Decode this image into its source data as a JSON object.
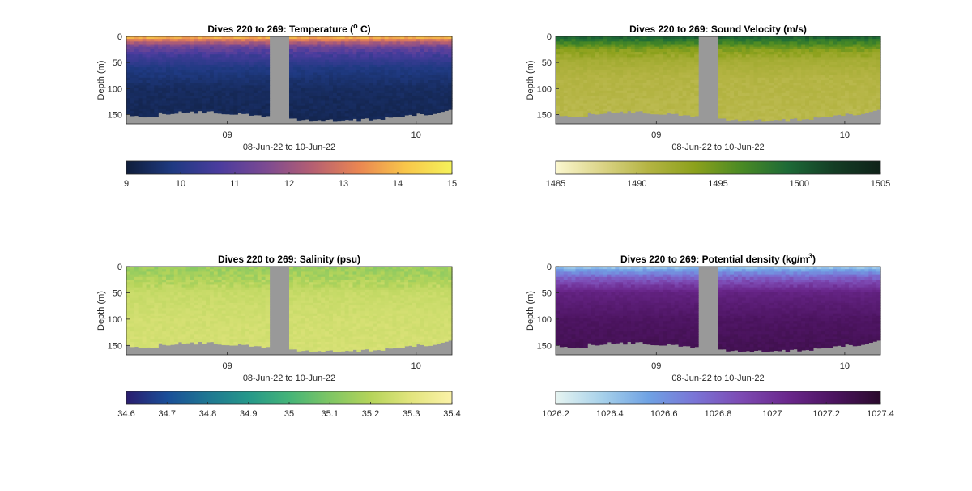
{
  "figure": {
    "date_range_label": "08-Jun-22 to 10-Jun-22",
    "depth_label": "Depth (m)",
    "depth_ticks": [
      0,
      50,
      100,
      150
    ],
    "depth_lim": [
      0,
      168
    ],
    "time_ticks": [
      "09",
      "10"
    ],
    "land_color": "#999999"
  },
  "chart_data": [
    {
      "type": "heatmap",
      "title_text": "Dives 220 to 269: Temperature (",
      "title_sup": "o",
      "title_tail": " C)",
      "ylabel": "Depth (m)",
      "xlabel": "08-Jun-22 to 10-Jun-22",
      "x_ticks": [
        "09",
        "10"
      ],
      "y_ticks": [
        0,
        50,
        100,
        150
      ],
      "ylim": [
        0,
        168
      ],
      "colorbar": {
        "ticks": [
          "9",
          "10",
          "11",
          "12",
          "13",
          "14",
          "15"
        ],
        "range": [
          9,
          15
        ],
        "colors": [
          "#0f1d3a",
          "#1f3a82",
          "#4b3c9e",
          "#7c4a92",
          "#b55f72",
          "#ea8652",
          "#f8c64a",
          "#f5f25a"
        ]
      },
      "profile": [
        [
          0,
          14.2
        ],
        [
          10,
          12.5
        ],
        [
          20,
          11.3
        ],
        [
          35,
          10.6
        ],
        [
          60,
          9.9
        ],
        [
          100,
          9.45
        ],
        [
          168,
          9.3
        ]
      ]
    },
    {
      "type": "heatmap",
      "title_text": "Dives 220 to 269: Sound Velocity (m/s)",
      "title_sup": "",
      "title_tail": "",
      "ylabel": "Depth (m)",
      "xlabel": "08-Jun-22 to 10-Jun-22",
      "x_ticks": [
        "09",
        "10"
      ],
      "y_ticks": [
        0,
        50,
        100,
        150
      ],
      "ylim": [
        0,
        168
      ],
      "colorbar": {
        "ticks": [
          "1485",
          "1490",
          "1495",
          "1500",
          "1505"
        ],
        "range": [
          1485,
          1505
        ],
        "colors": [
          "#fbf7cf",
          "#dbd487",
          "#b4b443",
          "#8ca11c",
          "#4a8a24",
          "#1d6a37",
          "#143d25",
          "#0f2219"
        ]
      },
      "profile": [
        [
          0,
          1500
        ],
        [
          10,
          1497.5
        ],
        [
          25,
          1494
        ],
        [
          45,
          1491.8
        ],
        [
          80,
          1490.7
        ],
        [
          168,
          1490.3
        ]
      ]
    },
    {
      "type": "heatmap",
      "title_text": "Dives 220 to 269: Salinity (psu)",
      "title_sup": "",
      "title_tail": "",
      "ylabel": "Depth (m)",
      "xlabel": "08-Jun-22 to 10-Jun-22",
      "x_ticks": [
        "09",
        "10"
      ],
      "y_ticks": [
        0,
        50,
        100,
        150
      ],
      "ylim": [
        0,
        168
      ],
      "colorbar": {
        "ticks": [
          "34.6",
          "34.7",
          "34.8",
          "34.9",
          "35",
          "35.1",
          "35.2",
          "35.3",
          "35.4"
        ],
        "range": [
          34.6,
          35.4
        ],
        "colors": [
          "#2a1d6e",
          "#1a4e98",
          "#1f7792",
          "#25988a",
          "#44b478",
          "#7ec664",
          "#b5d45a",
          "#e3e57e",
          "#fbf2a8"
        ]
      },
      "profile": [
        [
          0,
          35.15
        ],
        [
          20,
          35.18
        ],
        [
          50,
          35.24
        ],
        [
          100,
          35.26
        ],
        [
          168,
          35.27
        ]
      ]
    },
    {
      "type": "heatmap",
      "title_text": "Dives 220 to 269: Potential density (kg/m",
      "title_sup": "3",
      "title_tail": ")",
      "ylabel": "Depth (m)",
      "xlabel": "08-Jun-22 to 10-Jun-22",
      "x_ticks": [
        "09",
        "10"
      ],
      "y_ticks": [
        0,
        50,
        100,
        150
      ],
      "ylim": [
        0,
        168
      ],
      "colorbar": {
        "ticks": [
          "1026.2",
          "1026.4",
          "1026.6",
          "1026.8",
          "1027",
          "1027.2",
          "1027.4"
        ],
        "range": [
          1026.2,
          1027.4
        ],
        "colors": [
          "#e6f4f1",
          "#a7d1ea",
          "#6fa2e4",
          "#7a74d6",
          "#7d4ab3",
          "#6a278c",
          "#4c1460",
          "#2a0a2c"
        ]
      },
      "profile": [
        [
          0,
          1026.4
        ],
        [
          10,
          1026.6
        ],
        [
          25,
          1026.85
        ],
        [
          50,
          1027.1
        ],
        [
          100,
          1027.22
        ],
        [
          168,
          1027.28
        ]
      ]
    }
  ]
}
